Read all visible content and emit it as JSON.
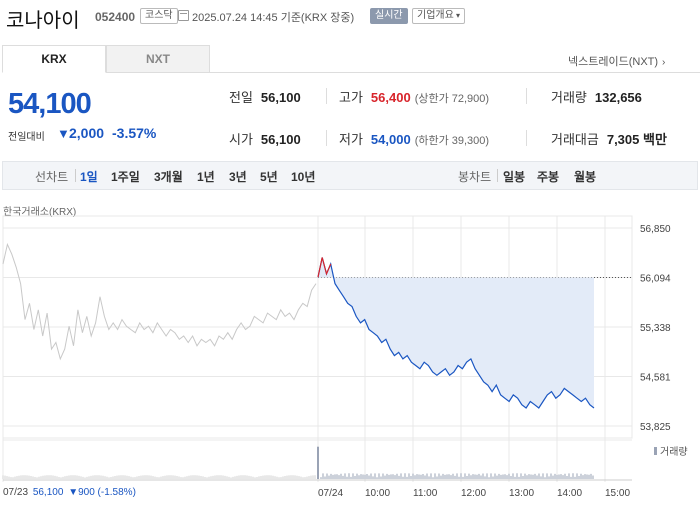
{
  "header": {
    "name": "코나아이",
    "code": "052400",
    "market": "코스닥",
    "datetime": "2025.07.24 14:45 기준(KRX 장중)",
    "realtime": "실시간",
    "company_info": "기업개요"
  },
  "tabs": [
    {
      "label": "KRX"
    },
    {
      "label": "NXT"
    }
  ],
  "nxt_link": "넥스트레이드(NXT)",
  "quote": {
    "price": "54,100",
    "change_label": "전일대비",
    "change_amount": "2,000",
    "change_pct": "-3.57%"
  },
  "stats": {
    "prev_close": {
      "label": "전일",
      "value": "56,100"
    },
    "high": {
      "label": "고가",
      "value": "56,400",
      "sub": "(상한가 72,900)"
    },
    "volume": {
      "label": "거래량",
      "value": "132,656"
    },
    "open": {
      "label": "시가",
      "value": "56,100"
    },
    "low": {
      "label": "저가",
      "value": "54,000",
      "sub": "(하한가 39,300)"
    },
    "trade_value": {
      "label": "거래대금",
      "value": "7,305 백만"
    }
  },
  "period_toolbar": {
    "line_label": "선차트",
    "line_periods": [
      "1일",
      "1주일",
      "3개월",
      "1년",
      "3년",
      "5년",
      "10년"
    ],
    "active_period": "1일",
    "candle_label": "봉차트",
    "candle_periods": [
      "일봉",
      "주봉",
      "월봉"
    ]
  },
  "exchange_label": "한국거래소(KRX)",
  "volume_legend": "거래량",
  "prev_day": {
    "date": "07/23",
    "price": "56,100",
    "change": "▼900 (-1.58%)"
  },
  "colors": {
    "up": "#d8242b",
    "down": "#1a56c2",
    "prev_line": "#c8c8c8",
    "fill": "#e3ebf8"
  },
  "chart_data": {
    "type": "line",
    "title": "",
    "xlabel": "",
    "ylabel": "",
    "y_ticks": [
      56850,
      56094,
      55338,
      54581,
      53825
    ],
    "ylim": [
      53825,
      56850
    ],
    "x_ticks": [
      "07/23",
      "07/24",
      "10:00",
      "11:00",
      "12:00",
      "13:00",
      "14:00",
      "15:00"
    ],
    "reference_price": 56094,
    "grid": true,
    "series": [
      {
        "role": "previous day (07/23)",
        "values": [
          56300,
          56600,
          56450,
          56250,
          56000,
          55450,
          55700,
          55300,
          55600,
          55200,
          55550,
          55000,
          55100,
          54850,
          55000,
          55350,
          55050,
          55600,
          55250,
          55500,
          55200,
          55400,
          55800,
          55500,
          55300,
          55400,
          55300,
          55450,
          55350,
          55300,
          55250,
          55400,
          55300,
          55350,
          55250,
          55400,
          55300,
          55200,
          55300,
          55250,
          55150,
          55200,
          55100,
          55200,
          55050,
          55150,
          55100,
          55150,
          55050,
          55200,
          55150,
          55250,
          55150,
          55300,
          55400,
          55300,
          55350,
          55500,
          55450,
          55400,
          55550,
          55500,
          55450,
          55600,
          55500,
          55550,
          55450,
          55600,
          55700,
          55650,
          55900,
          56000
        ]
      },
      {
        "role": "today (07/24)",
        "values": [
          56100,
          56400,
          56150,
          56300,
          56000,
          55900,
          55800,
          55700,
          55650,
          55500,
          55400,
          55450,
          55300,
          55250,
          55200,
          55100,
          55150,
          55000,
          54900,
          54950,
          54850,
          54900,
          54800,
          54750,
          54700,
          54800,
          54750,
          54650,
          54600,
          54650,
          54700,
          54600,
          54650,
          54750,
          54700,
          54800,
          54850,
          54700,
          54600,
          54500,
          54450,
          54350,
          54450,
          54300,
          54250,
          54200,
          54300,
          54250,
          54150,
          54100,
          54200,
          54150,
          54100,
          54200,
          54300,
          54350,
          54250,
          54300,
          54400,
          54350,
          54300,
          54250,
          54200,
          54250,
          54150,
          54100
        ]
      }
    ],
    "volume": {
      "prev_day_level": 0.1,
      "open_spike": 0.85,
      "today_level": 0.15
    }
  }
}
